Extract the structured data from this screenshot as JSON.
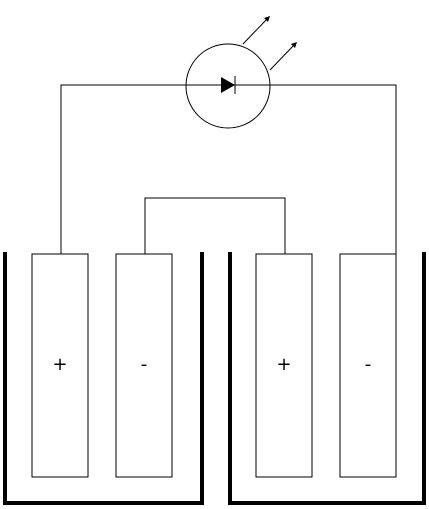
{
  "diagram": {
    "electrodes": [
      {
        "sign": "+"
      },
      {
        "sign": "-"
      },
      {
        "sign": "+"
      },
      {
        "sign": "-"
      }
    ],
    "colors": {
      "line": "#000000",
      "background": "#ffffff"
    }
  }
}
